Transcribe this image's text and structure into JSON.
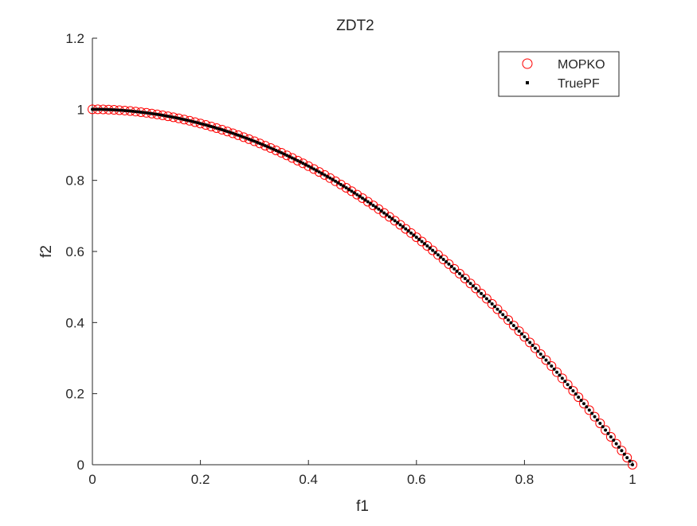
{
  "chart_data": {
    "type": "scatter",
    "title": "ZDT2",
    "xlabel": "f1",
    "ylabel": "f2",
    "xlim": [
      0,
      1
    ],
    "ylim": [
      0,
      1.2
    ],
    "xticks": [
      0,
      0.2,
      0.4,
      0.6,
      0.8,
      1
    ],
    "yticks": [
      0,
      0.2,
      0.4,
      0.6,
      0.8,
      1,
      1.2
    ],
    "xtick_labels": [
      "0",
      "0.2",
      "0.4",
      "0.6",
      "0.8",
      "1"
    ],
    "ytick_labels": [
      "0",
      "0.2",
      "0.4",
      "0.6",
      "0.8",
      "1",
      "1.2"
    ],
    "grid": false,
    "legend_position": "top-right",
    "series": [
      {
        "name": "MOPKO",
        "marker": "open-circle",
        "color": "#ff0000",
        "x": [
          0,
          0.01,
          0.02,
          0.03,
          0.04,
          0.05,
          0.06,
          0.07,
          0.08,
          0.09,
          0.1,
          0.11,
          0.12,
          0.13,
          0.14,
          0.15,
          0.16,
          0.17,
          0.18,
          0.19,
          0.2,
          0.21,
          0.22,
          0.23,
          0.24,
          0.25,
          0.26,
          0.27,
          0.28,
          0.29,
          0.3,
          0.31,
          0.32,
          0.33,
          0.34,
          0.35,
          0.36,
          0.37,
          0.38,
          0.39,
          0.4,
          0.41,
          0.42,
          0.43,
          0.44,
          0.45,
          0.46,
          0.47,
          0.48,
          0.49,
          0.5,
          0.51,
          0.52,
          0.53,
          0.54,
          0.55,
          0.56,
          0.57,
          0.58,
          0.59,
          0.6,
          0.61,
          0.62,
          0.63,
          0.64,
          0.65,
          0.66,
          0.67,
          0.68,
          0.69,
          0.7,
          0.71,
          0.72,
          0.73,
          0.74,
          0.75,
          0.76,
          0.77,
          0.78,
          0.79,
          0.8,
          0.81,
          0.82,
          0.83,
          0.84,
          0.85,
          0.86,
          0.87,
          0.88,
          0.89,
          0.9,
          0.91,
          0.92,
          0.93,
          0.94,
          0.95,
          0.96,
          0.97,
          0.98,
          0.99,
          1.0
        ],
        "y": [
          1.0,
          0.9999,
          0.9996,
          0.9991,
          0.9984,
          0.9975,
          0.9964,
          0.9951,
          0.9936,
          0.9919,
          0.99,
          0.9879,
          0.9856,
          0.9831,
          0.9804,
          0.9775,
          0.9744,
          0.9711,
          0.9676,
          0.9639,
          0.96,
          0.9559,
          0.9516,
          0.9471,
          0.9424,
          0.9375,
          0.9324,
          0.9271,
          0.9216,
          0.9159,
          0.91,
          0.9039,
          0.8976,
          0.8911,
          0.8844,
          0.8775,
          0.8704,
          0.8631,
          0.8556,
          0.8479,
          0.84,
          0.8319,
          0.8236,
          0.8151,
          0.8064,
          0.7975,
          0.7884,
          0.7791,
          0.7696,
          0.7599,
          0.75,
          0.7399,
          0.7296,
          0.7191,
          0.7084,
          0.6975,
          0.6864,
          0.6751,
          0.6636,
          0.6519,
          0.64,
          0.6279,
          0.6156,
          0.6031,
          0.5904,
          0.5775,
          0.5644,
          0.5511,
          0.5376,
          0.5239,
          0.51,
          0.4959,
          0.4816,
          0.4671,
          0.4524,
          0.4375,
          0.4224,
          0.4071,
          0.3916,
          0.3759,
          0.36,
          0.3439,
          0.3276,
          0.3111,
          0.2944,
          0.2775,
          0.2604,
          0.2431,
          0.2256,
          0.2079,
          0.19,
          0.1719,
          0.1536,
          0.1351,
          0.1164,
          0.0975,
          0.0784,
          0.0591,
          0.0396,
          0.0199,
          0.0
        ]
      },
      {
        "name": "TruePF",
        "marker": "dot",
        "color": "#000000",
        "x": [
          0,
          0.005,
          0.01,
          0.015,
          0.02,
          0.025,
          0.03,
          0.035,
          0.04,
          0.045,
          0.05,
          0.055,
          0.06,
          0.065,
          0.07,
          0.075,
          0.08,
          0.085,
          0.09,
          0.095,
          0.1,
          0.105,
          0.11,
          0.115,
          0.12,
          0.125,
          0.13,
          0.135,
          0.14,
          0.145,
          0.15,
          0.155,
          0.16,
          0.165,
          0.17,
          0.175,
          0.18,
          0.185,
          0.19,
          0.195,
          0.2,
          0.205,
          0.21,
          0.215,
          0.22,
          0.225,
          0.23,
          0.235,
          0.24,
          0.245,
          0.25,
          0.255,
          0.26,
          0.265,
          0.27,
          0.275,
          0.28,
          0.285,
          0.29,
          0.295,
          0.3,
          0.305,
          0.31,
          0.315,
          0.32,
          0.325,
          0.33,
          0.335,
          0.34,
          0.345,
          0.35,
          0.355,
          0.36,
          0.365,
          0.37,
          0.375,
          0.38,
          0.385,
          0.39,
          0.395,
          0.4,
          0.405,
          0.41,
          0.415,
          0.42,
          0.425,
          0.43,
          0.435,
          0.44,
          0.445,
          0.45,
          0.455,
          0.46,
          0.465,
          0.47,
          0.475,
          0.48,
          0.485,
          0.49,
          0.495,
          0.5,
          0.505,
          0.51,
          0.515,
          0.52,
          0.525,
          0.53,
          0.535,
          0.54,
          0.545,
          0.55,
          0.555,
          0.56,
          0.565,
          0.57,
          0.575,
          0.58,
          0.585,
          0.59,
          0.595,
          0.6,
          0.605,
          0.61,
          0.615,
          0.62,
          0.625,
          0.63,
          0.635,
          0.64,
          0.645,
          0.65,
          0.655,
          0.66,
          0.665,
          0.67,
          0.675,
          0.68,
          0.685,
          0.69,
          0.695,
          0.7,
          0.705,
          0.71,
          0.715,
          0.72,
          0.725,
          0.73,
          0.735,
          0.74,
          0.745,
          0.75,
          0.755,
          0.76,
          0.765,
          0.77,
          0.775,
          0.78,
          0.785,
          0.79,
          0.795,
          0.8,
          0.805,
          0.81,
          0.815,
          0.82,
          0.825,
          0.83,
          0.835,
          0.84,
          0.845,
          0.85,
          0.855,
          0.86,
          0.865,
          0.87,
          0.875,
          0.88,
          0.885,
          0.89,
          0.895,
          0.9,
          0.905,
          0.91,
          0.915,
          0.92,
          0.925,
          0.93,
          0.935,
          0.94,
          0.945,
          0.95,
          0.955,
          0.96,
          0.965,
          0.97,
          0.975,
          0.98,
          0.985,
          0.99,
          0.995,
          1.0
        ],
        "y": [
          1.0,
          1.0,
          0.9999,
          0.9998,
          0.9996,
          0.9994,
          0.9991,
          0.9988,
          0.9984,
          0.998,
          0.9975,
          0.997,
          0.9964,
          0.9958,
          0.9951,
          0.9944,
          0.9936,
          0.9928,
          0.9919,
          0.991,
          0.99,
          0.989,
          0.9879,
          0.9868,
          0.9856,
          0.9844,
          0.9831,
          0.9818,
          0.9804,
          0.979,
          0.9775,
          0.976,
          0.9744,
          0.9728,
          0.9711,
          0.9694,
          0.9676,
          0.9658,
          0.9639,
          0.962,
          0.96,
          0.958,
          0.9559,
          0.9538,
          0.9516,
          0.9494,
          0.9471,
          0.9448,
          0.9424,
          0.94,
          0.9375,
          0.935,
          0.9324,
          0.9298,
          0.9271,
          0.9244,
          0.9216,
          0.9188,
          0.9159,
          0.913,
          0.91,
          0.907,
          0.9039,
          0.9008,
          0.8976,
          0.8944,
          0.8911,
          0.8878,
          0.8844,
          0.881,
          0.8775,
          0.874,
          0.8704,
          0.8668,
          0.8631,
          0.8594,
          0.8556,
          0.8518,
          0.8479,
          0.844,
          0.84,
          0.836,
          0.8319,
          0.8278,
          0.8236,
          0.8194,
          0.8151,
          0.8108,
          0.8064,
          0.802,
          0.7975,
          0.793,
          0.7884,
          0.7838,
          0.7791,
          0.7744,
          0.7696,
          0.7648,
          0.7599,
          0.755,
          0.75,
          0.745,
          0.7399,
          0.7348,
          0.7296,
          0.7244,
          0.7191,
          0.7138,
          0.7084,
          0.703,
          0.6975,
          0.692,
          0.6864,
          0.6808,
          0.6751,
          0.6694,
          0.6636,
          0.6578,
          0.6519,
          0.646,
          0.64,
          0.634,
          0.6279,
          0.6218,
          0.6156,
          0.6094,
          0.6031,
          0.5968,
          0.5904,
          0.584,
          0.5775,
          0.571,
          0.5644,
          0.5578,
          0.5511,
          0.5444,
          0.5376,
          0.5308,
          0.5239,
          0.517,
          0.51,
          0.503,
          0.4959,
          0.4888,
          0.4816,
          0.4744,
          0.4671,
          0.4598,
          0.4524,
          0.445,
          0.4375,
          0.43,
          0.4224,
          0.4148,
          0.4071,
          0.3994,
          0.3916,
          0.3838,
          0.3759,
          0.368,
          0.36,
          0.352,
          0.3439,
          0.3358,
          0.3276,
          0.3194,
          0.3111,
          0.3028,
          0.2944,
          0.286,
          0.2775,
          0.269,
          0.2604,
          0.2518,
          0.2431,
          0.2344,
          0.2256,
          0.2168,
          0.2079,
          0.199,
          0.19,
          0.181,
          0.1719,
          0.1628,
          0.1536,
          0.1444,
          0.1351,
          0.1258,
          0.1164,
          0.107,
          0.0975,
          0.088,
          0.0784,
          0.0688,
          0.0591,
          0.0494,
          0.0396,
          0.0298,
          0.0199,
          0.01,
          0.0
        ]
      }
    ]
  }
}
